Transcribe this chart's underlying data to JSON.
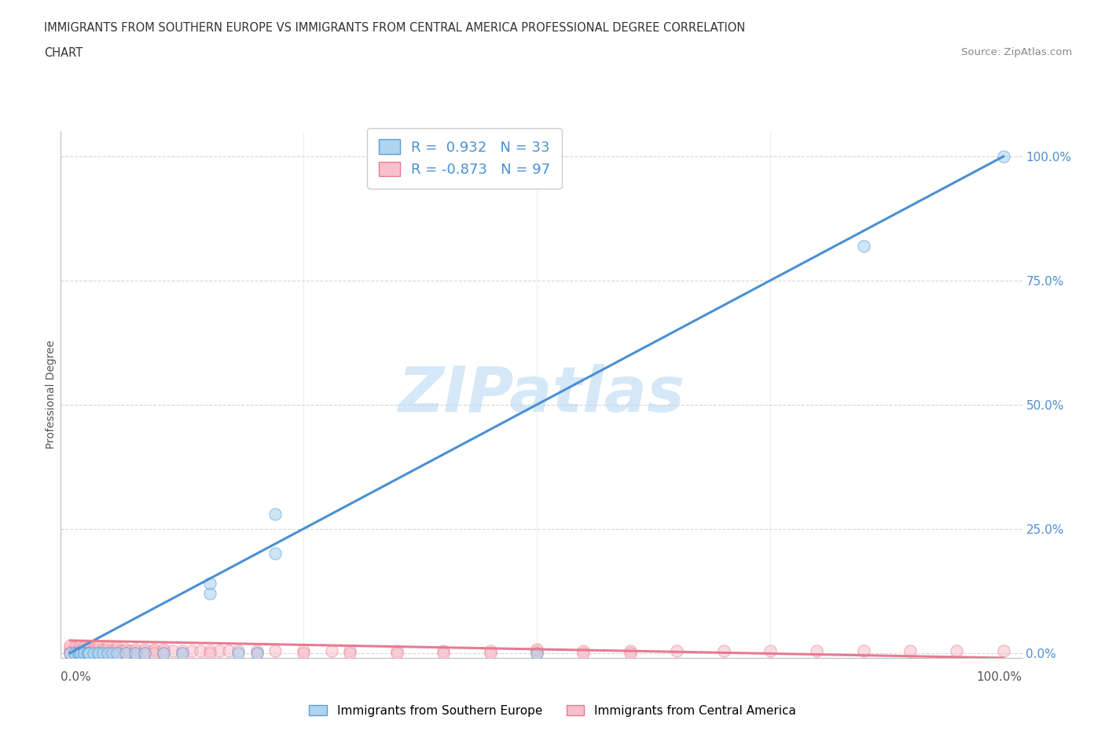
{
  "title_line1": "IMMIGRANTS FROM SOUTHERN EUROPE VS IMMIGRANTS FROM CENTRAL AMERICA PROFESSIONAL DEGREE CORRELATION",
  "title_line2": "CHART",
  "source_text": "Source: ZipAtlas.com",
  "ylabel": "Professional Degree",
  "blue_R": 0.932,
  "blue_N": 33,
  "pink_R": -0.873,
  "pink_N": 97,
  "blue_color": "#AED4F0",
  "pink_color": "#F9C0CB",
  "blue_edge_color": "#5B9FD4",
  "pink_edge_color": "#E87A90",
  "blue_line_color": "#4A8FD4",
  "pink_line_color": "#E87A90",
  "watermark_text": "ZIPatlas",
  "watermark_color": "#D5E8F8",
  "blue_scatter_x": [
    0.0,
    0.005,
    0.005,
    0.008,
    0.01,
    0.01,
    0.012,
    0.015,
    0.015,
    0.018,
    0.02,
    0.02,
    0.025,
    0.03,
    0.03,
    0.035,
    0.04,
    0.045,
    0.05,
    0.06,
    0.07,
    0.08,
    0.1,
    0.12,
    0.15,
    0.15,
    0.18,
    0.2,
    0.22,
    0.22,
    0.5,
    0.85,
    1.0
  ],
  "blue_scatter_y": [
    0.0,
    0.0,
    0.0,
    0.0,
    0.0,
    0.0,
    0.0,
    0.0,
    0.0,
    0.0,
    0.0,
    0.0,
    0.0,
    0.0,
    0.0,
    0.0,
    0.0,
    0.0,
    0.0,
    0.0,
    0.0,
    0.0,
    0.0,
    0.0,
    0.12,
    0.14,
    0.0,
    0.0,
    0.2,
    0.28,
    0.0,
    0.82,
    1.0
  ],
  "pink_scatter_x": [
    0.0,
    0.0,
    0.0,
    0.005,
    0.005,
    0.008,
    0.01,
    0.01,
    0.01,
    0.012,
    0.015,
    0.015,
    0.015,
    0.018,
    0.02,
    0.02,
    0.02,
    0.025,
    0.025,
    0.03,
    0.03,
    0.03,
    0.035,
    0.035,
    0.04,
    0.04,
    0.04,
    0.045,
    0.05,
    0.05,
    0.05,
    0.055,
    0.06,
    0.06,
    0.065,
    0.07,
    0.07,
    0.08,
    0.08,
    0.09,
    0.09,
    0.1,
    0.1,
    0.11,
    0.12,
    0.13,
    0.14,
    0.15,
    0.16,
    0.17,
    0.18,
    0.2,
    0.22,
    0.25,
    0.28,
    0.3,
    0.35,
    0.4,
    0.45,
    0.5,
    0.5,
    0.55,
    0.6,
    0.65,
    0.7,
    0.75,
    0.8,
    0.85,
    0.9,
    0.95,
    1.0,
    0.0,
    0.0,
    0.005,
    0.01,
    0.015,
    0.02,
    0.025,
    0.03,
    0.04,
    0.05,
    0.06,
    0.07,
    0.08,
    0.09,
    0.1,
    0.12,
    0.15,
    0.2,
    0.25,
    0.3,
    0.35,
    0.4,
    0.45,
    0.5,
    0.55,
    0.6
  ],
  "pink_scatter_y": [
    0.005,
    0.01,
    0.015,
    0.005,
    0.01,
    0.005,
    0.005,
    0.008,
    0.012,
    0.005,
    0.005,
    0.008,
    0.012,
    0.005,
    0.005,
    0.008,
    0.012,
    0.005,
    0.008,
    0.005,
    0.008,
    0.012,
    0.005,
    0.008,
    0.005,
    0.008,
    0.012,
    0.005,
    0.005,
    0.008,
    0.012,
    0.005,
    0.005,
    0.008,
    0.005,
    0.005,
    0.008,
    0.005,
    0.008,
    0.005,
    0.008,
    0.005,
    0.008,
    0.005,
    0.005,
    0.005,
    0.005,
    0.005,
    0.005,
    0.005,
    0.005,
    0.005,
    0.005,
    0.005,
    0.005,
    0.005,
    0.005,
    0.005,
    0.005,
    0.005,
    0.008,
    0.005,
    0.005,
    0.005,
    0.005,
    0.005,
    0.005,
    0.005,
    0.005,
    0.005,
    0.005,
    0.0,
    0.0,
    0.0,
    0.0,
    0.0,
    0.0,
    0.0,
    0.0,
    0.0,
    0.0,
    0.0,
    0.0,
    0.0,
    0.0,
    0.0,
    0.0,
    0.0,
    0.0,
    0.0,
    0.0,
    0.0,
    0.0,
    0.0,
    0.0,
    0.0,
    0.0
  ],
  "blue_line_x": [
    0.0,
    1.0
  ],
  "blue_line_y": [
    0.0,
    1.0
  ],
  "pink_line_x": [
    0.0,
    1.0
  ],
  "pink_line_y": [
    0.025,
    -0.01
  ],
  "xlim": [
    -0.01,
    1.02
  ],
  "ylim": [
    -0.01,
    1.05
  ],
  "xticks": [
    0.0,
    0.25,
    0.5,
    0.75,
    1.0
  ],
  "yticks": [
    0.0,
    0.25,
    0.5,
    0.75,
    1.0
  ],
  "xtick_labels_bottom": [
    "0.0%",
    "",
    "",
    "",
    "100.0%"
  ],
  "ytick_labels_right": [
    "0.0%",
    "25.0%",
    "50.0%",
    "75.0%",
    "100.0%"
  ],
  "grid_color": "#CCCCCC",
  "bg_color": "#FFFFFF",
  "title_color": "#333333",
  "ytick_color": "#4A8FD4",
  "xtick_color": "#555555",
  "source_color": "#888888",
  "legend_text_color": "#4A8FD4"
}
